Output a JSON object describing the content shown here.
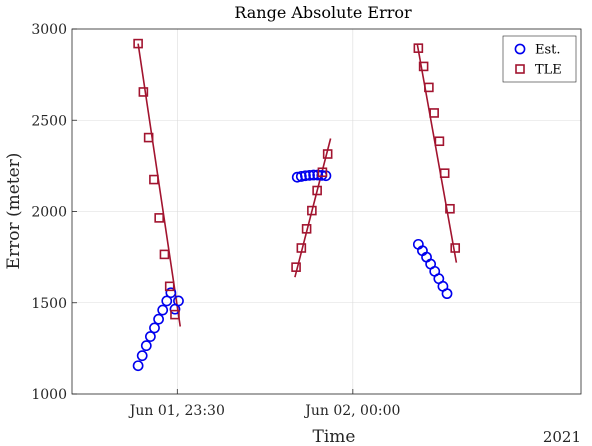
{
  "chart_data": {
    "type": "scatter",
    "title": "Range Absolute Error",
    "xlabel": "Time",
    "ylabel": "Error (meter)",
    "x_secondary_label": "2021",
    "ylim": [
      1000,
      3000
    ],
    "yticks": [
      1000,
      1500,
      2000,
      2500,
      3000
    ],
    "x_unit": "minutes after 2021-06-01 23:00",
    "xlim": [
      12,
      99
    ],
    "xticks": [
      {
        "value": 30,
        "label": "Jun 01, 23:30"
      },
      {
        "value": 60,
        "label": "Jun 02, 00:00"
      }
    ],
    "grid": true,
    "legend": {
      "placement": "top-right",
      "entries": [
        "Est.",
        "TLE"
      ]
    },
    "colors": {
      "est": "#0000ee",
      "tle": "#a2142f"
    },
    "series": [
      {
        "name": "Est.",
        "marker": "circle",
        "segments": [
          {
            "x": [
              23.3,
              24.0,
              24.7,
              25.4,
              26.1,
              26.8,
              27.5,
              28.2,
              28.9,
              29.6,
              30.2
            ],
            "y": [
              1155,
              1210,
              1265,
              1315,
              1362,
              1410,
              1460,
              1510,
              1555,
              1465,
              1510
            ]
          },
          {
            "x": [
              50.5,
              51.2,
              51.9,
              52.6,
              53.3,
              54.0,
              54.7,
              55.4
            ],
            "y": [
              2188,
              2192,
              2196,
              2198,
              2200,
              2200,
              2198,
              2196
            ]
          },
          {
            "x": [
              71.2,
              71.9,
              72.6,
              73.3,
              74.0,
              74.7,
              75.4,
              76.1
            ],
            "y": [
              1820,
              1785,
              1750,
              1712,
              1672,
              1632,
              1590,
              1550
            ]
          }
        ]
      },
      {
        "name": "TLE",
        "marker": "square",
        "segments": [
          {
            "x": [
              23.3,
              24.2,
              25.1,
              26.0,
              26.9,
              27.8,
              28.7,
              29.6
            ],
            "y": [
              2920,
              2655,
              2405,
              2175,
              1965,
              1765,
              1590,
              1435
            ],
            "fit": {
              "x": [
                23.3,
                30.5
              ],
              "y": [
                2920,
                1370
              ]
            }
          },
          {
            "x": [
              50.3,
              51.2,
              52.1,
              53.0,
              53.9,
              54.8,
              55.7
            ],
            "y": [
              1695,
              1800,
              1905,
              2005,
              2115,
              2215,
              2315
            ],
            "fit": {
              "x": [
                50.1,
                56.2
              ],
              "y": [
                1640,
                2400
              ]
            }
          },
          {
            "x": [
              71.2,
              72.1,
              73.0,
              73.9,
              74.8,
              75.7,
              76.6,
              77.5
            ],
            "y": [
              2895,
              2795,
              2680,
              2540,
              2385,
              2210,
              2015,
              1800
            ],
            "fit": {
              "x": [
                71.0,
                77.7
              ],
              "y": [
                2920,
                1720
              ]
            }
          }
        ]
      }
    ]
  }
}
